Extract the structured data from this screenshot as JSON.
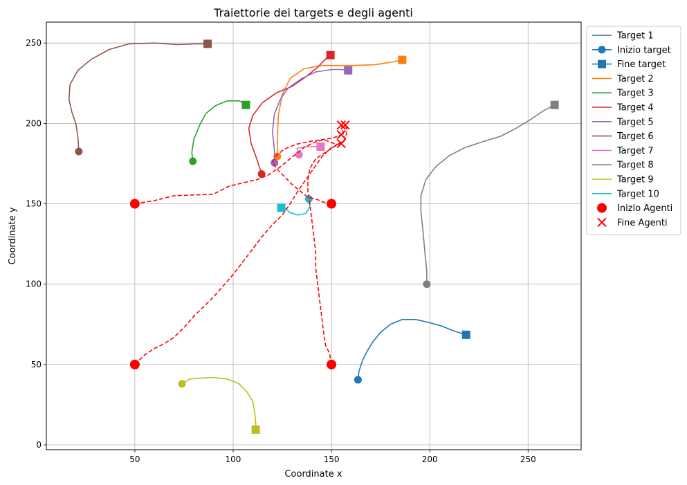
{
  "chart_data": {
    "type": "line",
    "title": "Traiettorie dei targets e degli agenti",
    "xlabel": "Coordinate x",
    "ylabel": "Coordinate y",
    "xlim": [
      5,
      277
    ],
    "ylim": [
      -3,
      263
    ],
    "xticks": [
      50,
      100,
      150,
      200,
      250
    ],
    "yticks": [
      0,
      50,
      100,
      150,
      200,
      250
    ],
    "grid": true,
    "legend_position": "outside-right-top",
    "legend": {
      "target_start": "Inizio target",
      "target_end": "Fine target",
      "agent_start": "Inizio Agenti",
      "agent_end": "Fine Agenti"
    },
    "agent_color": "#ff0000",
    "targets": [
      {
        "name": "Target 1",
        "color": "#1f77b4",
        "points": [
          [
            163.5,
            40.5
          ],
          [
            164,
            46
          ],
          [
            166,
            53
          ],
          [
            168,
            58
          ],
          [
            171,
            64
          ],
          [
            175,
            70
          ],
          [
            180,
            75
          ],
          [
            186,
            78
          ],
          [
            193,
            78
          ],
          [
            200,
            76
          ],
          [
            206,
            74
          ],
          [
            212,
            71
          ],
          [
            218.5,
            68.5
          ]
        ]
      },
      {
        "name": "Target 2",
        "color": "#ff7f0e",
        "points": [
          [
            122.5,
            179.5
          ],
          [
            122.5,
            190
          ],
          [
            123,
            205
          ],
          [
            125,
            218
          ],
          [
            129,
            228
          ],
          [
            136,
            234
          ],
          [
            145,
            236
          ],
          [
            160,
            236
          ],
          [
            172,
            236.5
          ],
          [
            180,
            238
          ],
          [
            186,
            239.5
          ]
        ]
      },
      {
        "name": "Target 3",
        "color": "#2ca02c",
        "points": [
          [
            79.5,
            176.5
          ],
          [
            79,
            182
          ],
          [
            80,
            190
          ],
          [
            83,
            199
          ],
          [
            86,
            206
          ],
          [
            91,
            211
          ],
          [
            97,
            214
          ],
          [
            103,
            214
          ],
          [
            107,
            212
          ],
          [
            106.5,
            211.5
          ]
        ]
      },
      {
        "name": "Target 4",
        "color": "#d62728",
        "points": [
          [
            114.5,
            168.5
          ],
          [
            112,
            178
          ],
          [
            109,
            188
          ],
          [
            108,
            197
          ],
          [
            110,
            205
          ],
          [
            115,
            213
          ],
          [
            122,
            219
          ],
          [
            130,
            223
          ],
          [
            137,
            229
          ],
          [
            143,
            235
          ],
          [
            147,
            240
          ],
          [
            149.5,
            242.5
          ]
        ]
      },
      {
        "name": "Target 5",
        "color": "#9467bd",
        "points": [
          [
            121,
            175.5
          ],
          [
            121,
            183
          ],
          [
            120,
            195
          ],
          [
            121,
            206
          ],
          [
            124,
            215
          ],
          [
            128,
            222
          ],
          [
            135,
            228
          ],
          [
            142,
            232
          ],
          [
            150,
            233.5
          ],
          [
            155,
            233.5
          ],
          [
            158.5,
            233
          ]
        ]
      },
      {
        "name": "Target 6",
        "color": "#8c564b",
        "points": [
          [
            21.5,
            182.5
          ],
          [
            21,
            192
          ],
          [
            20,
            200
          ],
          [
            18,
            207
          ],
          [
            16.5,
            215
          ],
          [
            17,
            224
          ],
          [
            21,
            233
          ],
          [
            28,
            240
          ],
          [
            37,
            246
          ],
          [
            47,
            249.5
          ],
          [
            60,
            250
          ],
          [
            72,
            249
          ],
          [
            80,
            249.5
          ],
          [
            87,
            249.5
          ]
        ]
      },
      {
        "name": "Target 7",
        "color": "#e377c2",
        "points": [
          [
            133.5,
            180.5
          ],
          [
            132.5,
            184.5
          ],
          [
            137,
            185.5
          ],
          [
            144.5,
            185.5
          ]
        ]
      },
      {
        "name": "Target 8",
        "color": "#7f7f7f",
        "points": [
          [
            198.5,
            100
          ],
          [
            198.5,
            108
          ],
          [
            197.5,
            120
          ],
          [
            196.5,
            134
          ],
          [
            195.5,
            145
          ],
          [
            195.5,
            155
          ],
          [
            198,
            165
          ],
          [
            203,
            173
          ],
          [
            210,
            180
          ],
          [
            218,
            185
          ],
          [
            228,
            189
          ],
          [
            236,
            192
          ],
          [
            244,
            197
          ],
          [
            252,
            203
          ],
          [
            258,
            208
          ],
          [
            263.5,
            211.5
          ]
        ]
      },
      {
        "name": "Target 9",
        "color": "#bcbd22",
        "points": [
          [
            74,
            38
          ],
          [
            78,
            41
          ],
          [
            83,
            41.5
          ],
          [
            90,
            42
          ],
          [
            97,
            41
          ],
          [
            103,
            38
          ],
          [
            107,
            33
          ],
          [
            110,
            27
          ],
          [
            111,
            20
          ],
          [
            111.5,
            13
          ],
          [
            111.5,
            9.5
          ]
        ]
      },
      {
        "name": "Target 10",
        "color": "#17becf",
        "points": [
          [
            138.5,
            153
          ],
          [
            139,
            148
          ],
          [
            137,
            144
          ],
          [
            133,
            143
          ],
          [
            129,
            144.5
          ],
          [
            126,
            147.5
          ],
          [
            124.5,
            147.5
          ]
        ]
      }
    ],
    "agents": [
      {
        "points": [
          [
            50,
            150
          ],
          [
            60,
            152
          ],
          [
            70,
            155
          ],
          [
            80,
            155.5
          ],
          [
            90,
            156
          ],
          [
            98,
            161
          ],
          [
            105,
            163
          ],
          [
            112,
            165
          ],
          [
            118,
            168
          ],
          [
            124,
            173
          ],
          [
            130,
            179
          ],
          [
            136,
            185
          ],
          [
            141,
            188
          ],
          [
            146,
            190
          ],
          [
            150,
            188
          ],
          [
            153,
            187
          ],
          [
            155,
            187.5
          ]
        ]
      },
      {
        "points": [
          [
            150,
            150
          ],
          [
            146,
            151
          ],
          [
            142,
            153
          ],
          [
            138,
            154
          ],
          [
            134,
            158
          ],
          [
            130,
            162
          ],
          [
            126,
            167
          ],
          [
            122,
            172
          ],
          [
            120,
            176
          ],
          [
            122,
            180
          ],
          [
            126,
            184
          ],
          [
            132,
            187
          ],
          [
            140,
            189
          ],
          [
            146,
            190
          ],
          [
            151,
            191
          ],
          [
            155,
            193
          ]
        ]
      },
      {
        "points": [
          [
            50,
            50
          ],
          [
            55,
            56
          ],
          [
            60,
            60
          ],
          [
            65,
            63
          ],
          [
            70,
            67
          ],
          [
            75,
            73
          ],
          [
            80,
            80
          ],
          [
            85,
            86
          ],
          [
            90,
            92
          ],
          [
            95,
            99
          ],
          [
            100,
            106
          ],
          [
            105,
            114
          ],
          [
            110,
            122
          ],
          [
            115,
            130
          ],
          [
            120,
            137
          ],
          [
            125,
            143
          ],
          [
            129,
            150
          ],
          [
            133,
            158
          ],
          [
            137,
            165
          ],
          [
            141,
            172
          ],
          [
            145,
            179
          ],
          [
            149,
            184
          ],
          [
            153,
            187
          ],
          [
            157,
            189
          ],
          [
            156,
            194
          ],
          [
            155,
            199
          ]
        ]
      },
      {
        "points": [
          [
            150,
            50
          ],
          [
            149,
            57
          ],
          [
            147,
            62
          ],
          [
            146,
            70
          ],
          [
            145,
            80
          ],
          [
            144,
            90
          ],
          [
            143,
            100
          ],
          [
            142,
            110
          ],
          [
            142,
            120
          ],
          [
            141,
            130
          ],
          [
            140,
            140
          ],
          [
            139,
            150
          ],
          [
            138,
            158
          ],
          [
            138,
            165
          ],
          [
            139,
            172
          ],
          [
            142,
            178
          ],
          [
            147,
            182
          ],
          [
            152,
            186
          ],
          [
            157,
            190
          ],
          [
            158,
            196
          ],
          [
            157,
            199
          ]
        ]
      }
    ]
  }
}
